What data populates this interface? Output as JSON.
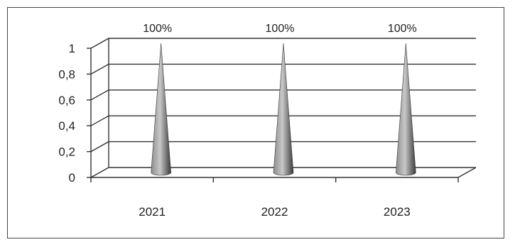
{
  "chart_data": {
    "type": "bar",
    "bar_shape": "cone",
    "style": "3d",
    "categories": [
      "2021",
      "2022",
      "2023"
    ],
    "values": [
      1,
      1,
      1
    ],
    "data_labels": [
      "100%",
      "100%",
      "100%"
    ],
    "yticks": [
      "0",
      "0,2",
      "0,4",
      "0,6",
      "0,8",
      "1"
    ],
    "ylim": [
      0,
      1
    ],
    "grid": true,
    "legend": "none",
    "colors": {
      "cone_dark": "#3a3a3a",
      "cone_mid": "#8c8c8c",
      "cone_light": "#c8c8c8",
      "grid": "#333333"
    }
  }
}
